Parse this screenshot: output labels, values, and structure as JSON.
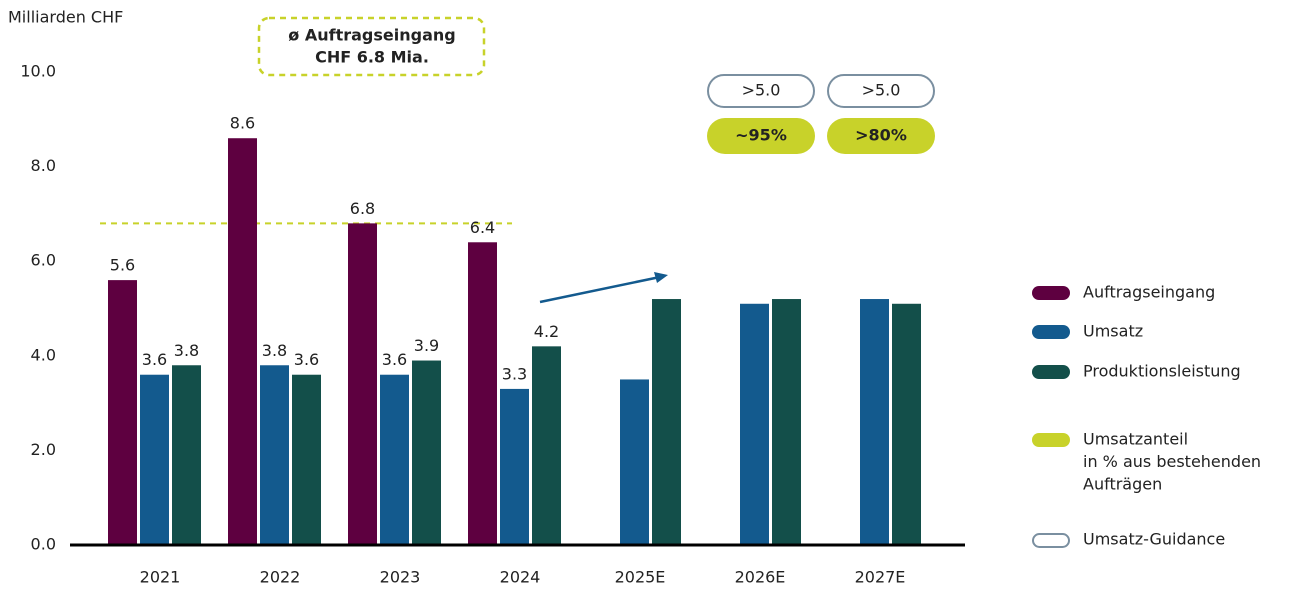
{
  "chart_data": {
    "type": "bar",
    "y_axis_label": "Milliarden CHF",
    "categories": [
      "2021",
      "2022",
      "2023",
      "2024",
      "2025E",
      "2026E",
      "2027E"
    ],
    "series": [
      {
        "name": "Auftragseingang",
        "color": "#5e0040",
        "values": [
          5.6,
          8.6,
          6.8,
          6.4,
          0,
          0,
          0
        ],
        "value_labels": [
          "5.6",
          "8.6",
          "6.8",
          "6.4",
          null,
          null,
          null
        ]
      },
      {
        "name": "Umsatz",
        "color": "#135a8e",
        "values": [
          3.6,
          3.8,
          3.6,
          3.3,
          3.5,
          5.1,
          5.2
        ],
        "value_labels": [
          "3.6",
          "3.8",
          "3.6",
          "3.3",
          null,
          null,
          null
        ]
      },
      {
        "name": "Produktionsleistung",
        "color": "#134f4a",
        "values": [
          3.8,
          3.6,
          3.9,
          4.2,
          5.2,
          5.2,
          5.1
        ],
        "value_labels": [
          "3.8",
          "3.6",
          "3.9",
          "4.2",
          null,
          null,
          null
        ]
      }
    ],
    "ylim": [
      0,
      10
    ],
    "yticks": [
      {
        "value": 0,
        "label": "0.0"
      },
      {
        "value": 2,
        "label": "2.0"
      },
      {
        "value": 4,
        "label": "4.0"
      },
      {
        "value": 6,
        "label": "6.0"
      },
      {
        "value": 8,
        "label": "8.0"
      },
      {
        "value": 10,
        "label": "10.0"
      }
    ],
    "reference_line": {
      "value": 6.8,
      "color": "#c8d22a"
    },
    "annotation": [
      "ø Auftragseingang",
      "CHF 6.8 Mia."
    ],
    "guidance": [
      null,
      null,
      null,
      null,
      null,
      ">5.0",
      ">5.0"
    ],
    "order_share": [
      null,
      null,
      null,
      null,
      null,
      "~95%",
      ">80%"
    ],
    "legend_extra": [
      {
        "name": [
          "Umsatzanteil",
          "in % aus bestehenden",
          "Aufträgen"
        ],
        "color": "#c8d22a"
      },
      {
        "name": [
          "Umsatz-Guidance"
        ],
        "color": "#7a8fa0"
      }
    ]
  }
}
